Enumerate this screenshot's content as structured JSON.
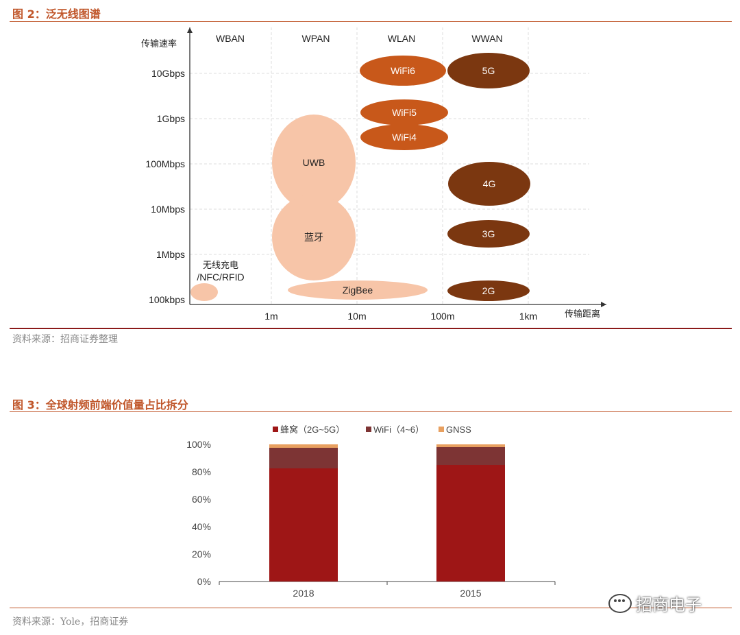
{
  "figure2": {
    "title": "图 2：泛无线图谱",
    "source": "资料来源：招商证券整理"
  },
  "figure3": {
    "title": "图 3：全球射频前端价值量占比拆分",
    "source": "资料来源：Yole，招商证券"
  },
  "watermark": "招商电子",
  "chart_data": [
    {
      "type": "scatter",
      "title": "",
      "xlabel": "传输距离",
      "ylabel": "传输速率",
      "x_ticks": [
        "1m",
        "10m",
        "100m",
        "1km"
      ],
      "y_ticks": [
        "100kbps",
        "1Mbps",
        "10Mbps",
        "100Mbps",
        "1Gbps",
        "10Gbps"
      ],
      "x_scale": "log",
      "y_scale": "log",
      "grid": true,
      "column_headers": [
        "WBAN",
        "WPAN",
        "WLAN",
        "WWAN"
      ],
      "bubbles": [
        {
          "label": "WiFi6",
          "x_range": [
            "10m",
            "100m"
          ],
          "rate": "10Gbps",
          "color": "#c8581a"
        },
        {
          "label": "5G",
          "x_range": [
            "100m",
            "1km"
          ],
          "rate": "10Gbps",
          "color": "#7b3710"
        },
        {
          "label": "WiFi5",
          "x_range": [
            "10m",
            "100m"
          ],
          "rate": "1Gbps",
          "color": "#c8581a"
        },
        {
          "label": "WiFi4",
          "x_range": [
            "10m",
            "100m"
          ],
          "rate": "500Mbps",
          "color": "#c8581a"
        },
        {
          "label": "UWB",
          "x_range": [
            "1m",
            "10m"
          ],
          "rate": "100Mbps",
          "color": "#f7c5a8"
        },
        {
          "label": "4G",
          "x_range": [
            "100m",
            "1km"
          ],
          "rate": "30Mbps",
          "color": "#7b3710"
        },
        {
          "label": "蓝牙",
          "x_range": [
            "1m",
            "10m"
          ],
          "rate": "2Mbps",
          "color": "#f7c5a8"
        },
        {
          "label": "3G",
          "x_range": [
            "100m",
            "1km"
          ],
          "rate": "2Mbps",
          "color": "#7b3710"
        },
        {
          "label": "ZigBee",
          "x_range": [
            "1m",
            "100m"
          ],
          "rate": "100kbps",
          "color": "#f7c5a8"
        },
        {
          "label": "2G",
          "x_range": [
            "100m",
            "1km"
          ],
          "rate": "100kbps",
          "color": "#7b3710"
        },
        {
          "label": "无线充电/NFC/RFID",
          "x_range": [
            "<1m",
            "<1m"
          ],
          "rate": "100kbps",
          "color": "#f7c5a8"
        }
      ]
    },
    {
      "type": "bar",
      "stacked": true,
      "title": "",
      "categories": [
        "2018",
        "2015"
      ],
      "ylim": [
        0,
        100
      ],
      "y_ticks": [
        "0%",
        "20%",
        "40%",
        "60%",
        "80%",
        "100%"
      ],
      "legend_position": "top",
      "series": [
        {
          "name": "蜂窝（2G~5G）",
          "values": [
            82.5,
            85
          ],
          "color": "#9e1616"
        },
        {
          "name": "WiFi（4~6）",
          "values": [
            15,
            13
          ],
          "color": "#7d3434"
        },
        {
          "name": "GNSS",
          "values": [
            2.5,
            2
          ],
          "color": "#e8a060"
        }
      ]
    }
  ]
}
